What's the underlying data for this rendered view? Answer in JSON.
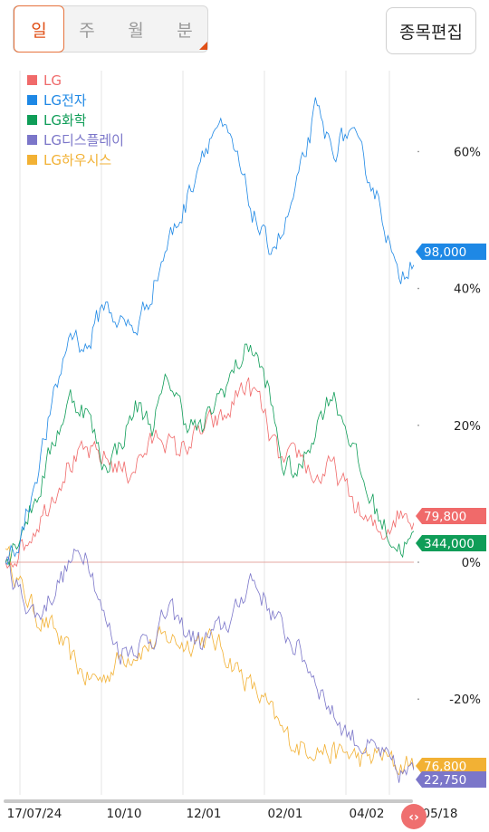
{
  "toolbar": {
    "periods": [
      "일",
      "주",
      "월",
      "분"
    ],
    "active_period": "일",
    "edit_label": "종목편집",
    "accent": "#e04f16"
  },
  "chart_data": {
    "type": "line",
    "x_ticks": [
      "17/07/24",
      "10/10",
      "12/01",
      "02/01",
      "04/02",
      "05/18"
    ],
    "y_ticks": [
      "60%",
      "40%",
      "20%",
      "0%",
      "-20%"
    ],
    "ylim": [
      -30,
      70
    ],
    "ylabel_unit": "%",
    "legend_position": "top-left",
    "grid": "vertical",
    "series": [
      {
        "name": "LG",
        "color": "#f06a6a",
        "last_value": "79,800",
        "anchors": [
          [
            0,
            0
          ],
          [
            5,
            3
          ],
          [
            10,
            8
          ],
          [
            15,
            14
          ],
          [
            20,
            16
          ],
          [
            25,
            15
          ],
          [
            30,
            13
          ],
          [
            34,
            16
          ],
          [
            38,
            19
          ],
          [
            42,
            16
          ],
          [
            46,
            18
          ],
          [
            50,
            20
          ],
          [
            54,
            21
          ],
          [
            58,
            26
          ],
          [
            62,
            24
          ],
          [
            65,
            18
          ],
          [
            68,
            14
          ],
          [
            72,
            16
          ],
          [
            76,
            12
          ],
          [
            80,
            14
          ],
          [
            84,
            10
          ],
          [
            88,
            6
          ],
          [
            92,
            4
          ],
          [
            96,
            7
          ],
          [
            100,
            7
          ]
        ]
      },
      {
        "name": "LG전자",
        "color": "#1e88e5",
        "last_value": "98,000",
        "anchors": [
          [
            0,
            0
          ],
          [
            4,
            4
          ],
          [
            8,
            14
          ],
          [
            12,
            24
          ],
          [
            16,
            34
          ],
          [
            20,
            31
          ],
          [
            24,
            38
          ],
          [
            28,
            35
          ],
          [
            32,
            34
          ],
          [
            36,
            40
          ],
          [
            40,
            47
          ],
          [
            44,
            52
          ],
          [
            48,
            60
          ],
          [
            52,
            64
          ],
          [
            56,
            60
          ],
          [
            60,
            52
          ],
          [
            64,
            46
          ],
          [
            68,
            48
          ],
          [
            72,
            56
          ],
          [
            76,
            66
          ],
          [
            80,
            60
          ],
          [
            84,
            63
          ],
          [
            88,
            58
          ],
          [
            92,
            52
          ],
          [
            96,
            41
          ],
          [
            100,
            45
          ]
        ]
      },
      {
        "name": "LG화학",
        "color": "#0f9d58",
        "last_value": "344,000",
        "anchors": [
          [
            0,
            0
          ],
          [
            4,
            5
          ],
          [
            8,
            10
          ],
          [
            12,
            18
          ],
          [
            16,
            24
          ],
          [
            20,
            22
          ],
          [
            24,
            14
          ],
          [
            28,
            17
          ],
          [
            32,
            23
          ],
          [
            36,
            20
          ],
          [
            40,
            27
          ],
          [
            44,
            21
          ],
          [
            48,
            19
          ],
          [
            52,
            24
          ],
          [
            56,
            28
          ],
          [
            60,
            32
          ],
          [
            64,
            26
          ],
          [
            68,
            14
          ],
          [
            72,
            13
          ],
          [
            76,
            20
          ],
          [
            80,
            25
          ],
          [
            84,
            19
          ],
          [
            88,
            11
          ],
          [
            92,
            6
          ],
          [
            96,
            2
          ],
          [
            100,
            3
          ]
        ]
      },
      {
        "name": "LG디스플레이",
        "color": "#7b76c9",
        "last_value": "22,750",
        "anchors": [
          [
            0,
            0
          ],
          [
            4,
            -5
          ],
          [
            8,
            -8
          ],
          [
            12,
            -4
          ],
          [
            16,
            0
          ],
          [
            20,
            2
          ],
          [
            24,
            -8
          ],
          [
            28,
            -13
          ],
          [
            32,
            -12
          ],
          [
            36,
            -11
          ],
          [
            40,
            -7
          ],
          [
            44,
            -10
          ],
          [
            48,
            -12
          ],
          [
            52,
            -10
          ],
          [
            56,
            -8
          ],
          [
            60,
            -2
          ],
          [
            64,
            -6
          ],
          [
            68,
            -10
          ],
          [
            72,
            -13
          ],
          [
            76,
            -17
          ],
          [
            80,
            -22
          ],
          [
            84,
            -25
          ],
          [
            88,
            -27
          ],
          [
            92,
            -28
          ],
          [
            96,
            -31
          ],
          [
            100,
            -31
          ]
        ]
      },
      {
        "name": "LG하우시스",
        "color": "#f2b134",
        "last_value": "76,800",
        "anchors": [
          [
            0,
            2
          ],
          [
            4,
            -4
          ],
          [
            8,
            -8
          ],
          [
            12,
            -10
          ],
          [
            16,
            -14
          ],
          [
            20,
            -17
          ],
          [
            24,
            -17
          ],
          [
            28,
            -14
          ],
          [
            32,
            -13
          ],
          [
            36,
            -12
          ],
          [
            40,
            -11
          ],
          [
            44,
            -12
          ],
          [
            48,
            -11
          ],
          [
            52,
            -12
          ],
          [
            56,
            -15
          ],
          [
            60,
            -18
          ],
          [
            64,
            -21
          ],
          [
            68,
            -25
          ],
          [
            72,
            -27
          ],
          [
            76,
            -27
          ],
          [
            80,
            -28
          ],
          [
            84,
            -28
          ],
          [
            88,
            -29
          ],
          [
            92,
            -28
          ],
          [
            96,
            -30
          ],
          [
            100,
            -29
          ]
        ]
      }
    ]
  },
  "scroller": {
    "icon": "chevron-pair-icon",
    "color": "#ef6f6f",
    "glyph": "‹›"
  }
}
